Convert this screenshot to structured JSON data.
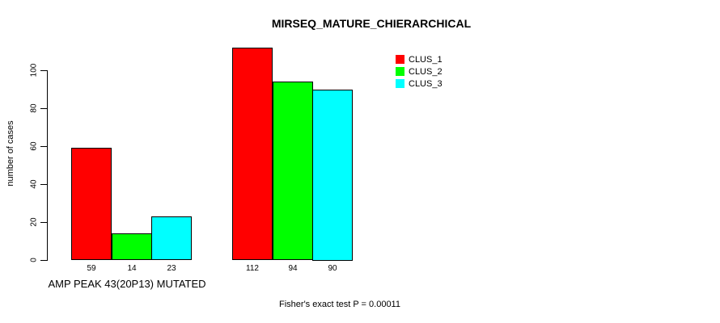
{
  "chart_data": {
    "type": "bar",
    "title": "MIRSEQ_MATURE_CHIERARCHICAL",
    "ylabel": "number of cases",
    "xlabel": "",
    "ylim": [
      0,
      112
    ],
    "yticks": [
      0,
      20,
      40,
      60,
      80,
      100
    ],
    "grid": false,
    "legend_position": "top-right",
    "categories": [
      "AMP PEAK 43(20P13) MUTATED",
      ""
    ],
    "series": [
      {
        "name": "CLUS_1",
        "color": "#ff0000",
        "values": [
          59,
          112
        ]
      },
      {
        "name": "CLUS_2",
        "color": "#00ff00",
        "values": [
          14,
          94
        ]
      },
      {
        "name": "CLUS_3",
        "color": "#00ffff",
        "values": [
          23,
          90
        ]
      }
    ],
    "footnote": "Fisher's exact test P = 0.00011"
  },
  "colors": {
    "axis": "#000000",
    "text": "#000000",
    "background": "#ffffff"
  }
}
